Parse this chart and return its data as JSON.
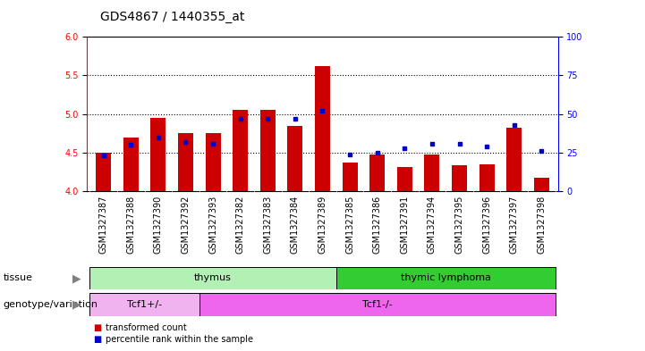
{
  "title": "GDS4867 / 1440355_at",
  "samples": [
    "GSM1327387",
    "GSM1327388",
    "GSM1327390",
    "GSM1327392",
    "GSM1327393",
    "GSM1327382",
    "GSM1327383",
    "GSM1327384",
    "GSM1327389",
    "GSM1327385",
    "GSM1327386",
    "GSM1327391",
    "GSM1327394",
    "GSM1327395",
    "GSM1327396",
    "GSM1327397",
    "GSM1327398"
  ],
  "transformed_counts": [
    4.5,
    4.7,
    4.95,
    4.75,
    4.75,
    5.05,
    5.05,
    4.85,
    5.62,
    4.37,
    4.48,
    4.32,
    4.48,
    4.34,
    4.35,
    4.82,
    4.18
  ],
  "percentile_ranks": [
    23,
    30,
    35,
    32,
    31,
    47,
    47,
    47,
    52,
    24,
    25,
    28,
    31,
    31,
    29,
    43,
    26
  ],
  "ylim_left": [
    4.0,
    6.0
  ],
  "ylim_right": [
    0,
    100
  ],
  "yticks_left": [
    4.0,
    4.5,
    5.0,
    5.5,
    6.0
  ],
  "yticks_right": [
    0,
    25,
    50,
    75,
    100
  ],
  "hlines": [
    4.5,
    5.0,
    5.5
  ],
  "tissue_groups": [
    {
      "label": "thymus",
      "start": 0,
      "end": 9,
      "color": "#b3f0b3"
    },
    {
      "label": "thymic lymphoma",
      "start": 9,
      "end": 17,
      "color": "#33cc33"
    }
  ],
  "genotype_groups": [
    {
      "label": "Tcf1+/-",
      "start": 0,
      "end": 4,
      "color": "#f0b3f0"
    },
    {
      "label": "Tcf1-/-",
      "start": 4,
      "end": 17,
      "color": "#ee66ee"
    }
  ],
  "tissue_row_label": "tissue",
  "genotype_row_label": "genotype/variation",
  "legend_items": [
    {
      "color": "#CC0000",
      "label": "transformed count"
    },
    {
      "color": "#0000CC",
      "label": "percentile rank within the sample"
    }
  ],
  "bar_color": "#CC0000",
  "dot_color": "#0000CC",
  "bar_width": 0.55,
  "background_color": "#FFFFFF",
  "label_bg_color": "#CCCCCC",
  "tick_label_fontsize": 7,
  "title_fontsize": 10,
  "row_label_fontsize": 8,
  "group_label_fontsize": 8
}
